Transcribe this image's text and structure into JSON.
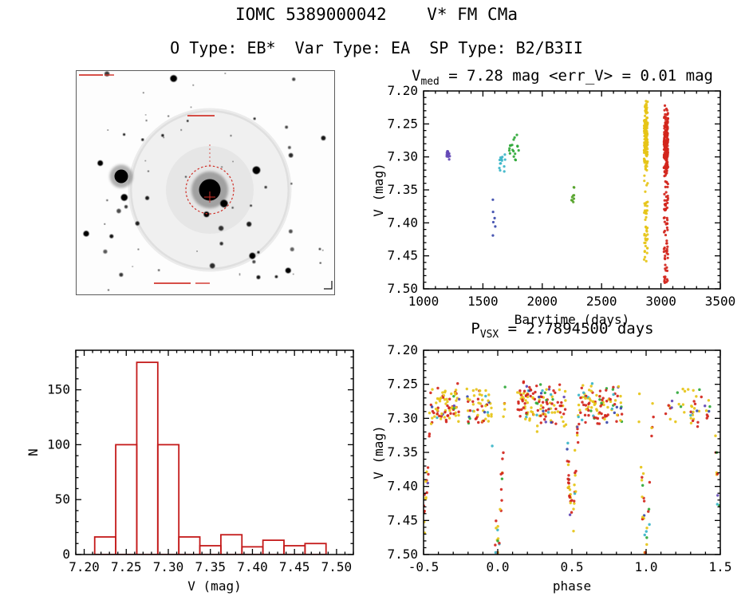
{
  "header": {
    "title": "IOMC 5389000042    V* FM CMa",
    "subtitle": "O Type: EB*  Var Type: EA  SP Type: B2/B3II"
  },
  "values": {
    "v_med_mag": 7.28,
    "err_v_mag": 0.01,
    "period_days": 2.78945,
    "otype": "EB*",
    "var_type": "EA",
    "sp_type": "B2/B3II",
    "source_id": "IOMC 5389000042",
    "source_name": "V* FM CMa"
  },
  "palette": {
    "yellow": "#e6c417",
    "red": "#d2251c",
    "green": "#2fa838",
    "green2": "#55a32a",
    "cyan": "#3ab5c8",
    "navy": "#3949ab",
    "purple": "#6247b5"
  },
  "finding_chart": {
    "description": "Negative grayscale star field with bright saturated central star, diffraction spikes, faint circular halo, red dotted aperture circle and red crosshair marker",
    "marker_color": "#d03028"
  },
  "chart_data": [
    {
      "id": "lightcurve",
      "type": "scatter",
      "title": {
        "pre": "V",
        "sub": "med",
        "rest": " = 7.28 mag <err_V> = 0.01 mag"
      },
      "xlabel": "Barytime (days)",
      "ylabel": "V (mag)",
      "xlim": [
        1000,
        3500
      ],
      "ylim": [
        7.2,
        7.5
      ],
      "y_inverted": true,
      "xticks": [
        1000,
        1500,
        2000,
        2500,
        3000,
        3500
      ],
      "xtick_labels": [
        "1000",
        "1500",
        "2000",
        "2500",
        "3000",
        "3500"
      ],
      "yticks": [
        7.2,
        7.25,
        7.3,
        7.35,
        7.4,
        7.45,
        7.5
      ],
      "ytick_labels": [
        "7.20",
        "7.25",
        "7.30",
        "7.35",
        "7.40",
        "7.45",
        "7.50"
      ],
      "x_minor": 100,
      "y_minor": 0.01,
      "clusters": [
        {
          "name": "epoch-1",
          "color": "purple",
          "x": [
            1195,
            1228
          ],
          "v": [
            7.285,
            7.306
          ],
          "n": 11
        },
        {
          "name": "epoch-2",
          "color": "navy",
          "x": [
            1580,
            1606
          ],
          "v": [
            7.36,
            7.44
          ],
          "n": 6
        },
        {
          "name": "epoch-3",
          "color": "cyan",
          "x": [
            1638,
            1692
          ],
          "v": [
            7.285,
            7.326
          ],
          "n": 13
        },
        {
          "name": "epoch-4",
          "color": "green",
          "x": [
            1722,
            1802
          ],
          "v": [
            7.264,
            7.31
          ],
          "n": 18
        },
        {
          "name": "epoch-5",
          "color": "green2",
          "x": [
            2245,
            2272
          ],
          "v": [
            7.315,
            7.39
          ],
          "n": 9
        },
        {
          "name": "epoch-6",
          "color": "yellow",
          "x": [
            2858,
            2888
          ],
          "v": [
            7.212,
            7.335
          ],
          "n": 160,
          "tail": {
            "v": [
              7.335,
              7.46
            ],
            "n": 45
          }
        },
        {
          "name": "epoch-7",
          "color": "red",
          "x": [
            3025,
            3060
          ],
          "v": [
            7.22,
            7.335
          ],
          "n": 190,
          "tail": {
            "v": [
              7.335,
              7.497
            ],
            "n": 70
          }
        }
      ]
    },
    {
      "id": "histogram",
      "type": "bar",
      "xlabel": "V (mag)",
      "ylabel": "N",
      "xlim": [
        7.19,
        7.52
      ],
      "ylim": [
        0,
        186
      ],
      "y_inverted": false,
      "xticks": [
        7.2,
        7.25,
        7.3,
        7.35,
        7.4,
        7.45,
        7.5
      ],
      "xtick_labels": [
        "7.20",
        "7.25",
        "7.30",
        "7.35",
        "7.40",
        "7.45",
        "7.50"
      ],
      "yticks": [
        0,
        50,
        100,
        150
      ],
      "ytick_labels": [
        "0",
        "50",
        "100",
        "150"
      ],
      "x_minor": 0.01,
      "y_minor": 10,
      "bar_color": "#c41a1a",
      "bin_start": 7.2125,
      "bin_width": 0.025,
      "counts": [
        16,
        100,
        175,
        100,
        16,
        8,
        18,
        7,
        13,
        8,
        10
      ]
    },
    {
      "id": "phase",
      "type": "scatter",
      "title": {
        "pre": "P",
        "sub": "VSX",
        "rest": " = 2.7894500 days"
      },
      "xlabel": "phase",
      "ylabel": "V (mag)",
      "xlim": [
        -0.5,
        1.5
      ],
      "ylim": [
        7.2,
        7.5
      ],
      "y_inverted": true,
      "xticks": [
        -0.5,
        0.0,
        0.5,
        1.0,
        1.5
      ],
      "xtick_labels": [
        "-0.5",
        "0.0",
        "0.5",
        "1.0",
        "1.5"
      ],
      "yticks": [
        7.2,
        7.25,
        7.3,
        7.35,
        7.4,
        7.45,
        7.5
      ],
      "ytick_labels": [
        "7.20",
        "7.25",
        "7.30",
        "7.35",
        "7.40",
        "7.45",
        "7.50"
      ],
      "x_minor": 0.1,
      "y_minor": 0.01,
      "model": {
        "baseline": 7.28,
        "scatter": 0.022,
        "primary_depth": 0.22,
        "secondary_depth": 0.165,
        "eclipse_halfwidth": 0.045,
        "n_points": 560,
        "windows": [
          [
            -0.5,
            -0.26,
            0.14
          ],
          [
            -0.21,
            0.05,
            0.18
          ],
          [
            0.13,
            0.47,
            0.22
          ],
          [
            0.47,
            0.56,
            0.09
          ],
          [
            0.56,
            0.84,
            0.2
          ],
          [
            0.95,
            1.05,
            0.07
          ],
          [
            1.13,
            1.5,
            0.1
          ]
        ],
        "color_weights": {
          "yellow": 0.42,
          "red": 0.4,
          "green": 0.06,
          "cyan": 0.05,
          "navy": 0.04,
          "purple": 0.03
        }
      }
    }
  ]
}
